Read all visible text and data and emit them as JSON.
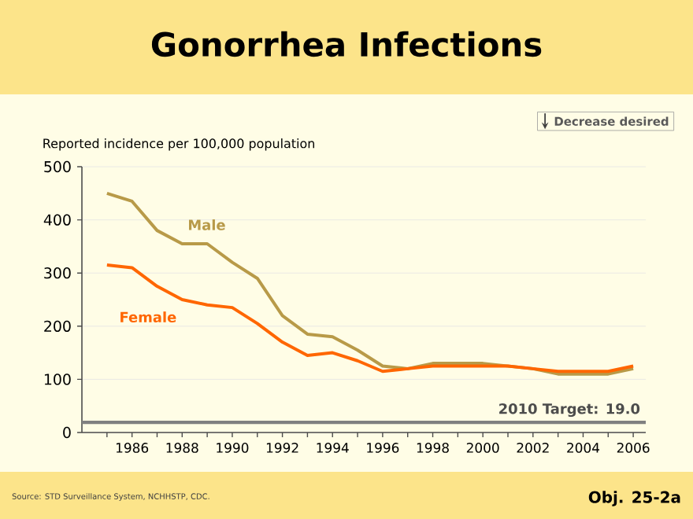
{
  "chart_data": {
    "type": "line",
    "title": "Gonorrhea Infections",
    "ylabel": "Reported incidence per 100,000 population",
    "x": [
      1985,
      1986,
      1987,
      1988,
      1989,
      1990,
      1991,
      1992,
      1993,
      1994,
      1995,
      1996,
      1997,
      1998,
      1999,
      2000,
      2001,
      2002,
      2003,
      2004,
      2005,
      2006
    ],
    "series": [
      {
        "name": "Male",
        "color": "#b89a48",
        "values": [
          450,
          435,
          380,
          355,
          355,
          320,
          290,
          220,
          185,
          180,
          155,
          125,
          120,
          130,
          130,
          130,
          125,
          120,
          110,
          110,
          110,
          120
        ]
      },
      {
        "name": "Female",
        "color": "#ff6600",
        "values": [
          315,
          310,
          275,
          250,
          240,
          235,
          205,
          170,
          145,
          150,
          135,
          115,
          120,
          125,
          125,
          125,
          125,
          120,
          115,
          115,
          115,
          125
        ]
      }
    ],
    "xlim": [
      1984,
      2006.5
    ],
    "ylim": [
      0,
      500
    ],
    "xticks": [
      {
        "value": 1985,
        "label": null
      },
      1986,
      {
        "value": 1987,
        "label": null
      },
      1988,
      {
        "value": 1989,
        "label": null
      },
      1990,
      {
        "value": 1991,
        "label": null
      },
      1992,
      {
        "value": 1993,
        "label": null
      },
      1994,
      {
        "value": 1995,
        "label": null
      },
      1996,
      {
        "value": 1997,
        "label": null
      },
      1998,
      {
        "value": 1999,
        "label": null
      },
      2000,
      {
        "value": 2001,
        "label": null
      },
      2002,
      {
        "value": 2003,
        "label": null
      },
      2004,
      {
        "value": 2005,
        "label": null
      },
      2006
    ],
    "yticks": [
      0,
      100,
      200,
      300,
      400,
      500
    ],
    "grid": "y",
    "legend": false,
    "marker": "none",
    "line_style": "solid",
    "ref_lines": [
      {
        "axis": "y",
        "value": 19,
        "label": "2010 Target: 19.0",
        "color": "#808080"
      }
    ],
    "annotations": [
      "Decrease desired",
      "Source: STD Surveillance System, NCHHSTP, CDC.",
      "Obj. 25-2a"
    ]
  }
}
